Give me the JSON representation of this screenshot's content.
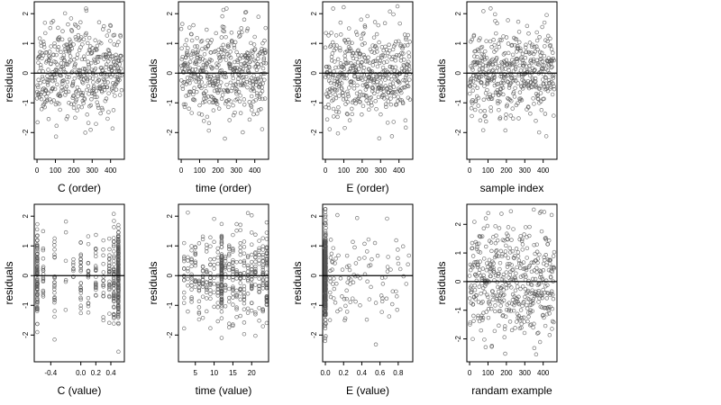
{
  "figure": {
    "background": "#ffffff",
    "point_color": "#555555"
  },
  "chart_data": [
    {
      "id": "c-order",
      "type": "scatter",
      "xlabel": "C (order)",
      "ylabel": "residuals",
      "xlim": [
        -15,
        475
      ],
      "ylim": [
        -2.9,
        2.4
      ],
      "xticks": [
        0,
        100,
        200,
        300,
        400
      ],
      "xtick_labels": [
        "0",
        "100",
        "200",
        "300",
        "400"
      ],
      "yticks": [
        -2,
        -1,
        0,
        1,
        2
      ],
      "ytick_labels": [
        "-2",
        "-1",
        "0",
        "1",
        "2"
      ],
      "reference_line": {
        "type": "h",
        "value": 0
      },
      "points": {
        "n": 460,
        "x_kind": "index",
        "x_range": [
          0,
          460
        ],
        "sd": 0.75,
        "seed": 11
      }
    },
    {
      "id": "time-order",
      "type": "scatter",
      "xlabel": "time (order)",
      "ylabel": "residuals",
      "xlim": [
        -15,
        475
      ],
      "ylim": [
        -2.9,
        2.4
      ],
      "xticks": [
        0,
        100,
        200,
        300,
        400
      ],
      "xtick_labels": [
        "0",
        "100",
        "200",
        "300",
        "400"
      ],
      "yticks": [
        -2,
        -1,
        0,
        1,
        2
      ],
      "ytick_labels": [
        "-2",
        "-1",
        "0",
        "1",
        "2"
      ],
      "reference_line": {
        "type": "h",
        "value": 0
      },
      "points": {
        "n": 460,
        "x_kind": "index",
        "x_range": [
          0,
          460
        ],
        "sd": 0.75,
        "seed": 23
      }
    },
    {
      "id": "e-order",
      "type": "scatter",
      "xlabel": "E (order)",
      "ylabel": "residuals",
      "xlim": [
        -15,
        475
      ],
      "ylim": [
        -2.9,
        2.4
      ],
      "xticks": [
        0,
        100,
        200,
        300,
        400
      ],
      "xtick_labels": [
        "0",
        "100",
        "200",
        "300",
        "400"
      ],
      "yticks": [
        -2,
        -1,
        0,
        1,
        2
      ],
      "ytick_labels": [
        "-2",
        "-1",
        "0",
        "1",
        "2"
      ],
      "reference_line": {
        "type": "h",
        "value": 0
      },
      "points": {
        "n": 460,
        "x_kind": "index",
        "x_range": [
          0,
          460
        ],
        "sd": 0.75,
        "seed": 37
      }
    },
    {
      "id": "sample-index",
      "type": "scatter",
      "xlabel": "sample index",
      "ylabel": "residuals",
      "xlim": [
        -15,
        475
      ],
      "ylim": [
        -2.9,
        2.4
      ],
      "xticks": [
        0,
        100,
        200,
        300,
        400
      ],
      "xtick_labels": [
        "0",
        "100",
        "200",
        "300",
        "400"
      ],
      "yticks": [
        -2,
        -1,
        0,
        1,
        2
      ],
      "ytick_labels": [
        "-2",
        "-1",
        "0",
        "1",
        "2"
      ],
      "reference_line": {
        "type": "h",
        "value": 0
      },
      "points": {
        "n": 460,
        "x_kind": "index",
        "x_range": [
          0,
          460
        ],
        "sd": 0.75,
        "seed": 41
      }
    },
    {
      "id": "c-value",
      "type": "scatter",
      "xlabel": "C (value)",
      "ylabel": "residuals",
      "xlim": [
        -0.62,
        0.58
      ],
      "ylim": [
        -2.9,
        2.4
      ],
      "xticks": [
        -0.4,
        0.0,
        0.2,
        0.4
      ],
      "xtick_labels": [
        "-0.4",
        "0.0",
        "0.2",
        "0.4"
      ],
      "yticks": [
        -2,
        -1,
        0,
        1,
        2
      ],
      "ytick_labels": [
        "-2",
        "-1",
        "0",
        "1",
        "2"
      ],
      "reference_line": {
        "type": "h",
        "value": 0
      },
      "points": {
        "n": 460,
        "x_kind": "discrete",
        "x_values": [
          -0.58,
          -0.5,
          -0.35,
          -0.2,
          -0.1,
          0.0,
          0.1,
          0.2,
          0.3,
          0.38,
          0.44,
          0.5
        ],
        "x_weights": [
          6,
          2,
          2,
          1,
          1,
          2,
          1,
          2,
          2,
          2,
          5,
          14
        ],
        "sd": 0.75,
        "seed": 53
      }
    },
    {
      "id": "time-value",
      "type": "scatter",
      "xlabel": "time (value)",
      "ylabel": "residuals",
      "xlim": [
        0.5,
        24.5
      ],
      "ylim": [
        -2.9,
        2.4
      ],
      "xticks": [
        5,
        10,
        15,
        20
      ],
      "xtick_labels": [
        "5",
        "10",
        "15",
        "20"
      ],
      "yticks": [
        -2,
        -1,
        0,
        1,
        2
      ],
      "ytick_labels": [
        "-2",
        "-1",
        "0",
        "1",
        "2"
      ],
      "reference_line": {
        "type": "h",
        "value": 0
      },
      "points": {
        "n": 460,
        "x_kind": "discrete",
        "x_values": [
          2,
          3,
          4,
          5,
          6,
          7,
          8,
          9,
          10,
          11,
          12,
          13,
          14,
          15,
          16,
          17,
          18,
          19,
          20,
          21,
          22,
          23,
          24
        ],
        "x_weights": [
          1,
          1,
          1,
          1,
          1,
          1,
          1,
          1,
          1,
          1,
          6,
          1,
          1,
          1,
          1,
          1,
          1,
          1,
          1,
          1,
          1,
          1,
          2
        ],
        "sd": 0.75,
        "seed": 67
      }
    },
    {
      "id": "e-value",
      "type": "scatter",
      "xlabel": "E (value)",
      "ylabel": "residuals",
      "xlim": [
        -0.03,
        0.96
      ],
      "ylim": [
        -2.9,
        2.4
      ],
      "xticks": [
        0.0,
        0.2,
        0.4,
        0.6,
        0.8
      ],
      "xtick_labels": [
        "0.0",
        "0.2",
        "0.4",
        "0.6",
        "0.8"
      ],
      "yticks": [
        -2,
        -1,
        0,
        1,
        2
      ],
      "ytick_labels": [
        "-2",
        "-1",
        "0",
        "1",
        "2"
      ],
      "reference_line": {
        "type": "h",
        "value": 0
      },
      "points": {
        "n": 460,
        "x_kind": "skewed",
        "cluster_x": 0.0,
        "cluster_share": 0.82,
        "tail_range": [
          0.05,
          0.92
        ],
        "sd": 0.75,
        "seed": 79
      }
    },
    {
      "id": "random-example",
      "type": "scatter",
      "xlabel": "randam example",
      "ylabel": "residuals",
      "xlim": [
        -15,
        475
      ],
      "ylim": [
        -2.8,
        2.7
      ],
      "xticks": [
        0,
        100,
        200,
        300,
        400
      ],
      "xtick_labels": [
        "0",
        "100",
        "200",
        "300",
        "400"
      ],
      "yticks": [
        -2,
        -1,
        0,
        1,
        2
      ],
      "ytick_labels": [
        "-2",
        "-1",
        "0",
        "1",
        "2"
      ],
      "reference_line": {
        "type": "h",
        "value": 0
      },
      "points": {
        "n": 460,
        "x_kind": "index",
        "x_range": [
          0,
          460
        ],
        "sd": 1.0,
        "seed": 97
      }
    }
  ]
}
